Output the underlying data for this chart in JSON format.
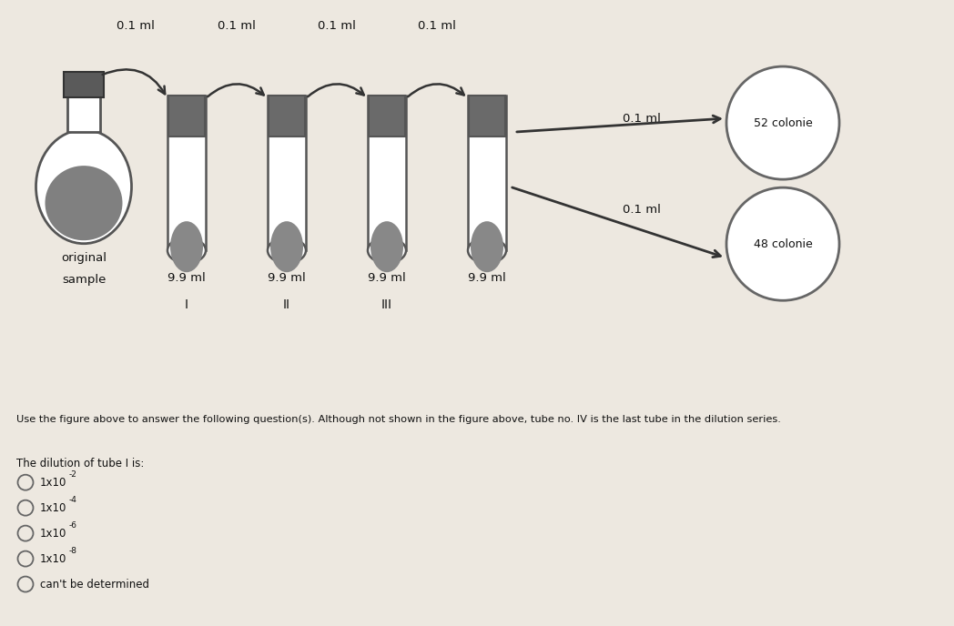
{
  "bg_top": "#ede8e0",
  "bg_bottom": "#c5cdd8",
  "title_question": "Use the figure above to answer the following question(s). Although not shown in the figure above, tube no. IV is the last tube in the dilution series.",
  "sub_question": "The dilution of tube I is:",
  "options_display": [
    "1x10-2",
    "1x10-4",
    "1x10-6",
    "1x10-8",
    "can't be determined"
  ],
  "tube_labels": [
    "I",
    "II",
    "III"
  ],
  "tube_volumes": [
    "9.9 ml",
    "9.9 ml",
    "9.9 ml",
    "9.9 ml"
  ],
  "transfer_volumes": [
    "0.1 ml",
    "0.1 ml",
    "0.1 ml",
    "0.1 ml"
  ],
  "plate_labels": [
    "52 colonie",
    "48 colonie"
  ],
  "plating_vol_upper": "0.1 ml",
  "plating_vol_lower": "0.1 ml",
  "tube_cap_color": "#6a6a6a",
  "tube_body_color": "#ffffff",
  "tube_liquid_color": "#888888",
  "tube_border_color": "#555555",
  "flask_body_color": "#ffffff",
  "flask_liquid_color": "#808080",
  "flask_border_color": "#555555",
  "flask_cap_color": "#5a5a5a",
  "arrow_color": "#333333",
  "text_color": "#111111",
  "plate_border_color": "#666666"
}
